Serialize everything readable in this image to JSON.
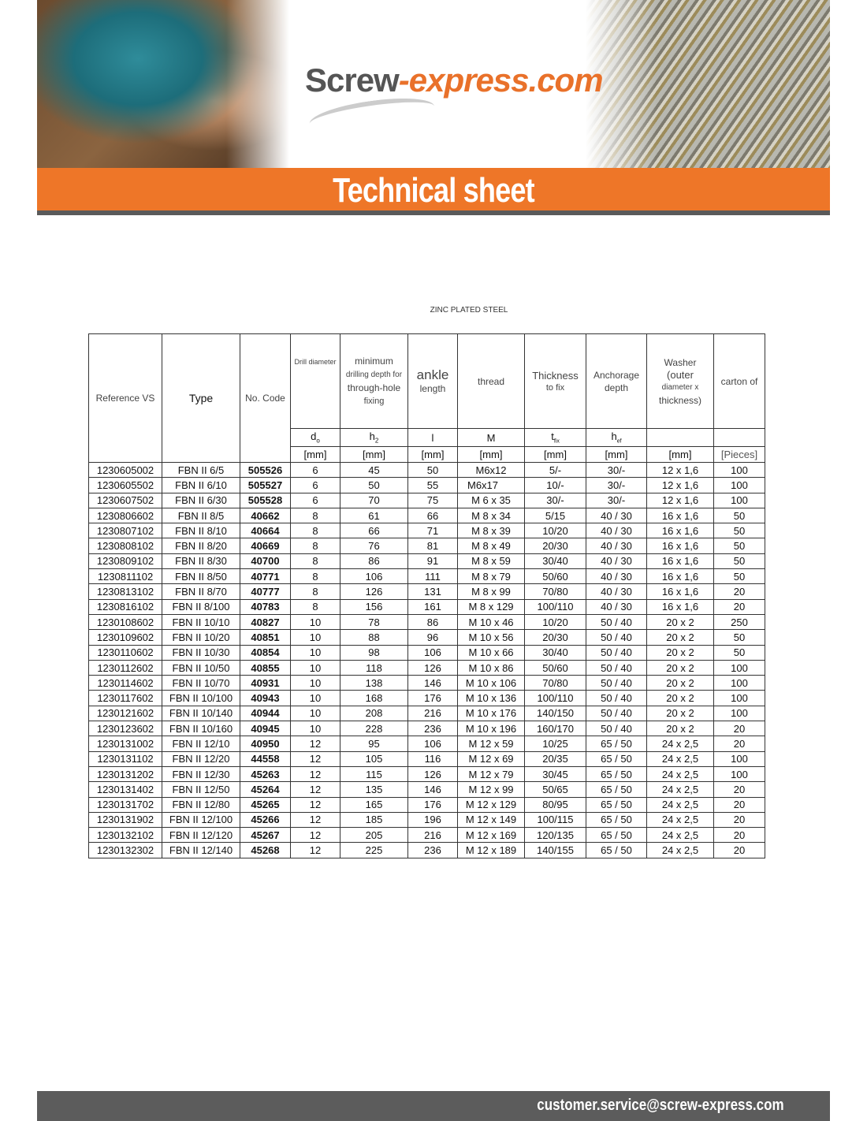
{
  "header": {
    "logo_main": "Screw",
    "logo_accent": "-express.com",
    "title": "Technical sheet"
  },
  "subtitle": "ZINC PLATED STEEL",
  "table": {
    "headers": {
      "reference": "Reference VS",
      "type": "Type",
      "code": "No. Code",
      "drill": "Drill diameter",
      "depth_1": "minimum",
      "depth_2": "drilling depth for",
      "depth_3": "through-hole",
      "depth_4": "fixing",
      "length_1": "ankle",
      "length_2": "length",
      "thread": "thread",
      "thickness_1": "Thickness",
      "thickness_2": "to fix",
      "anchorage_1": "Anchorage",
      "anchorage_2": "depth",
      "washer_1": "Washer",
      "washer_2": "(outer",
      "washer_3": "diameter x",
      "washer_4": "thickness)",
      "carton": "carton of"
    },
    "symbols": [
      "d₀",
      "h₂",
      "l",
      "M",
      "t_fix",
      "h_ef",
      "",
      ""
    ],
    "symbol_display": {
      "d": "d",
      "d_sub": "o",
      "h": "h",
      "h_sub": "2",
      "l": "l",
      "m": "M",
      "t": "t",
      "t_sub": "fix",
      "hef": "h",
      "hef_sub": "ef"
    },
    "units": [
      "[mm]",
      "[mm]",
      "[mm]",
      "[mm]",
      "[mm]",
      "[mm]",
      "[mm]",
      "[Pieces]"
    ],
    "rows": [
      [
        "1230605002",
        "FBN II 6/5",
        "505526",
        "6",
        "45",
        "50",
        "M6x12",
        "5/-",
        "30/-",
        "12 x 1,6",
        "100"
      ],
      [
        "1230605502",
        "FBN II 6/10",
        "505527",
        "6",
        "50",
        "55",
        "M6x17",
        "10/-",
        "30/-",
        "12 x 1,6",
        "100"
      ],
      [
        "1230607502",
        "FBN II 6/30",
        "505528",
        "6",
        "70",
        "75",
        "M 6 x 35",
        "30/-",
        "30/-",
        "12 x 1,6",
        "100"
      ],
      [
        "1230806602",
        "FBN II 8/5",
        "40662",
        "8",
        "61",
        "66",
        "M 8 x 34",
        "5/15",
        "40 / 30",
        "16 x 1,6",
        "50"
      ],
      [
        "1230807102",
        "FBN II 8/10",
        "40664",
        "8",
        "66",
        "71",
        "M 8 x 39",
        "10/20",
        "40 / 30",
        "16 x 1,6",
        "50"
      ],
      [
        "1230808102",
        "FBN II 8/20",
        "40669",
        "8",
        "76",
        "81",
        "M 8 x 49",
        "20/30",
        "40 / 30",
        "16 x 1,6",
        "50"
      ],
      [
        "1230809102",
        "FBN II 8/30",
        "40700",
        "8",
        "86",
        "91",
        "M 8 x 59",
        "30/40",
        "40 / 30",
        "16 x 1,6",
        "50"
      ],
      [
        "1230811102",
        "FBN II 8/50",
        "40771",
        "8",
        "106",
        "111",
        "M 8 x 79",
        "50/60",
        "40 / 30",
        "16 x 1,6",
        "50"
      ],
      [
        "1230813102",
        "FBN II 8/70",
        "40777",
        "8",
        "126",
        "131",
        "M 8 x 99",
        "70/80",
        "40 / 30",
        "16 x 1,6",
        "20"
      ],
      [
        "1230816102",
        "FBN II 8/100",
        "40783",
        "8",
        "156",
        "161",
        "M 8 x 129",
        "100/110",
        "40 / 30",
        "16 x 1,6",
        "20"
      ],
      [
        "1230108602",
        "FBN II 10/10",
        "40827",
        "10",
        "78",
        "86",
        "M 10 x 46",
        "10/20",
        "50 / 40",
        "20 x 2",
        "250"
      ],
      [
        "1230109602",
        "FBN II 10/20",
        "40851",
        "10",
        "88",
        "96",
        "M 10 x 56",
        "20/30",
        "50 / 40",
        "20 x 2",
        "50"
      ],
      [
        "1230110602",
        "FBN II 10/30",
        "40854",
        "10",
        "98",
        "106",
        "M 10 x 66",
        "30/40",
        "50 / 40",
        "20 x 2",
        "50"
      ],
      [
        "1230112602",
        "FBN II 10/50",
        "40855",
        "10",
        "118",
        "126",
        "M 10 x 86",
        "50/60",
        "50 / 40",
        "20 x 2",
        "100"
      ],
      [
        "1230114602",
        "FBN II 10/70",
        "40931",
        "10",
        "138",
        "146",
        "M 10 x 106",
        "70/80",
        "50 / 40",
        "20 x 2",
        "100"
      ],
      [
        "1230117602",
        "FBN II 10/100",
        "40943",
        "10",
        "168",
        "176",
        "M 10 x 136",
        "100/110",
        "50 / 40",
        "20 x 2",
        "100"
      ],
      [
        "1230121602",
        "FBN II 10/140",
        "40944",
        "10",
        "208",
        "216",
        "M 10 x 176",
        "140/150",
        "50 / 40",
        "20 x 2",
        "100"
      ],
      [
        "1230123602",
        "FBN II 10/160",
        "40945",
        "10",
        "228",
        "236",
        "M 10 x 196",
        "160/170",
        "50 / 40",
        "20 x 2",
        "20"
      ],
      [
        "1230131002",
        "FBN II 12/10",
        "40950",
        "12",
        "95",
        "106",
        "M 12 x 59",
        "10/25",
        "65 / 50",
        "24 x 2,5",
        "20"
      ],
      [
        "1230131102",
        "FBN II 12/20",
        "44558",
        "12",
        "105",
        "116",
        "M 12 x 69",
        "20/35",
        "65 / 50",
        "24 x 2,5",
        "100"
      ],
      [
        "1230131202",
        "FBN II 12/30",
        "45263",
        "12",
        "115",
        "126",
        "M 12 x 79",
        "30/45",
        "65 / 50",
        "24 x 2,5",
        "100"
      ],
      [
        "1230131402",
        "FBN II 12/50",
        "45264",
        "12",
        "135",
        "146",
        "M 12 x 99",
        "50/65",
        "65 / 50",
        "24 x 2,5",
        "20"
      ],
      [
        "1230131702",
        "FBN II 12/80",
        "45265",
        "12",
        "165",
        "176",
        "M 12 x 129",
        "80/95",
        "65 / 50",
        "24 x 2,5",
        "20"
      ],
      [
        "1230131902",
        "FBN II 12/100",
        "45266",
        "12",
        "185",
        "196",
        "M 12 x 149",
        "100/115",
        "65 / 50",
        "24 x 2,5",
        "20"
      ],
      [
        "1230132102",
        "FBN II 12/120",
        "45267",
        "12",
        "205",
        "216",
        "M 12 x 169",
        "120/135",
        "65 / 50",
        "24 x 2,5",
        "20"
      ],
      [
        "1230132302",
        "FBN II 12/140",
        "45268",
        "12",
        "225",
        "236",
        "M 12 x 189",
        "140/155",
        "65 / 50",
        "24 x 2,5",
        "20"
      ]
    ]
  },
  "footer": {
    "email": "customer.service@screw-express.com"
  },
  "colors": {
    "accent": "#ee7628",
    "footer": "#5c5c5c"
  }
}
